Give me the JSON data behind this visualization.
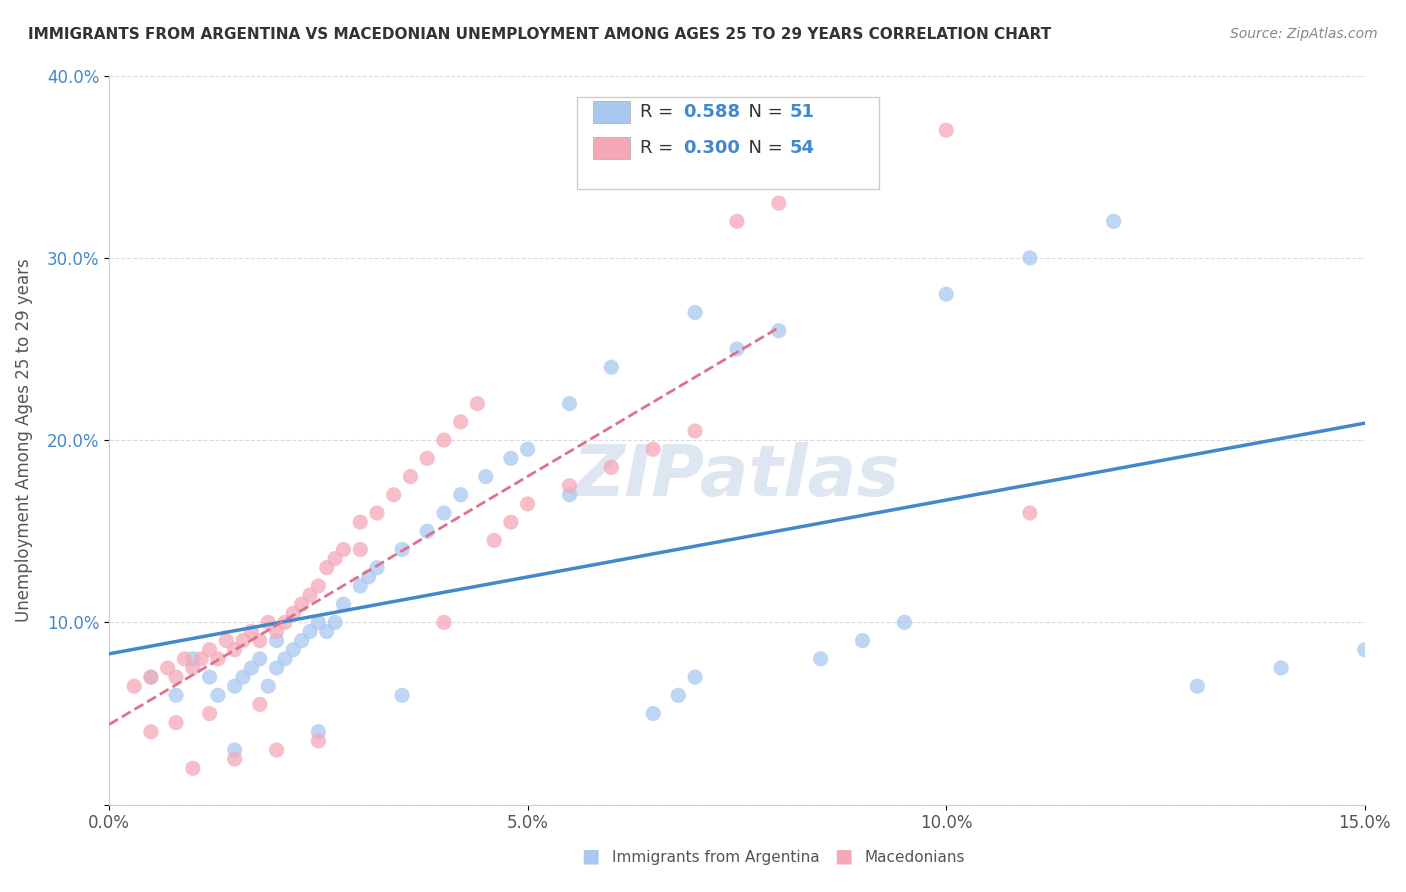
{
  "title": "IMMIGRANTS FROM ARGENTINA VS MACEDONIAN UNEMPLOYMENT AMONG AGES 25 TO 29 YEARS CORRELATION CHART",
  "source": "Source: ZipAtlas.com",
  "ylabel": "Unemployment Among Ages 25 to 29 years",
  "legend_label1": "Immigrants from Argentina",
  "legend_label2": "Macedonians",
  "r1": 0.588,
  "n1": 51,
  "r2": 0.3,
  "n2": 54,
  "color1": "#a8c8f0",
  "color2": "#f5a8b8",
  "line_color1": "#4488cc",
  "line_color2": "#e07090",
  "watermark": "ZIPatlas",
  "watermark_color": "#c8d8e8",
  "xlim": [
    0,
    0.15
  ],
  "ylim": [
    0,
    0.4
  ],
  "xticks": [
    0.0,
    0.05,
    0.1,
    0.15
  ],
  "yticks": [
    0.0,
    0.1,
    0.2,
    0.3,
    0.4
  ],
  "xtick_labels": [
    "0.0%",
    "5.0%",
    "10.0%",
    "15.0%"
  ],
  "ytick_labels": [
    "",
    "10.0%",
    "20.0%",
    "30.0%",
    "40.0%"
  ],
  "scatter1_x": [
    0.005,
    0.008,
    0.01,
    0.012,
    0.013,
    0.015,
    0.016,
    0.017,
    0.018,
    0.019,
    0.02,
    0.02,
    0.021,
    0.022,
    0.023,
    0.024,
    0.025,
    0.026,
    0.027,
    0.028,
    0.03,
    0.031,
    0.032,
    0.035,
    0.038,
    0.04,
    0.042,
    0.045,
    0.048,
    0.05,
    0.055,
    0.06,
    0.065,
    0.068,
    0.07,
    0.075,
    0.08,
    0.085,
    0.09,
    0.095,
    0.1,
    0.11,
    0.12,
    0.13,
    0.14,
    0.15,
    0.055,
    0.035,
    0.025,
    0.015,
    0.07
  ],
  "scatter1_y": [
    0.07,
    0.06,
    0.08,
    0.07,
    0.06,
    0.065,
    0.07,
    0.075,
    0.08,
    0.065,
    0.075,
    0.09,
    0.08,
    0.085,
    0.09,
    0.095,
    0.1,
    0.095,
    0.1,
    0.11,
    0.12,
    0.125,
    0.13,
    0.14,
    0.15,
    0.16,
    0.17,
    0.18,
    0.19,
    0.195,
    0.22,
    0.24,
    0.05,
    0.06,
    0.07,
    0.25,
    0.26,
    0.08,
    0.09,
    0.1,
    0.28,
    0.3,
    0.32,
    0.065,
    0.075,
    0.085,
    0.17,
    0.06,
    0.04,
    0.03,
    0.27
  ],
  "scatter2_x": [
    0.003,
    0.005,
    0.007,
    0.008,
    0.009,
    0.01,
    0.011,
    0.012,
    0.013,
    0.014,
    0.015,
    0.016,
    0.017,
    0.018,
    0.019,
    0.02,
    0.021,
    0.022,
    0.023,
    0.024,
    0.025,
    0.026,
    0.027,
    0.028,
    0.03,
    0.032,
    0.034,
    0.036,
    0.038,
    0.04,
    0.042,
    0.044,
    0.046,
    0.048,
    0.05,
    0.055,
    0.06,
    0.065,
    0.07,
    0.075,
    0.08,
    0.09,
    0.1,
    0.11,
    0.01,
    0.02,
    0.015,
    0.025,
    0.005,
    0.008,
    0.012,
    0.018,
    0.03,
    0.04
  ],
  "scatter2_y": [
    0.065,
    0.07,
    0.075,
    0.07,
    0.08,
    0.075,
    0.08,
    0.085,
    0.08,
    0.09,
    0.085,
    0.09,
    0.095,
    0.09,
    0.1,
    0.095,
    0.1,
    0.105,
    0.11,
    0.115,
    0.12,
    0.13,
    0.135,
    0.14,
    0.155,
    0.16,
    0.17,
    0.18,
    0.19,
    0.2,
    0.21,
    0.22,
    0.145,
    0.155,
    0.165,
    0.175,
    0.185,
    0.195,
    0.205,
    0.32,
    0.33,
    0.35,
    0.37,
    0.16,
    0.02,
    0.03,
    0.025,
    0.035,
    0.04,
    0.045,
    0.05,
    0.055,
    0.14,
    0.1
  ]
}
